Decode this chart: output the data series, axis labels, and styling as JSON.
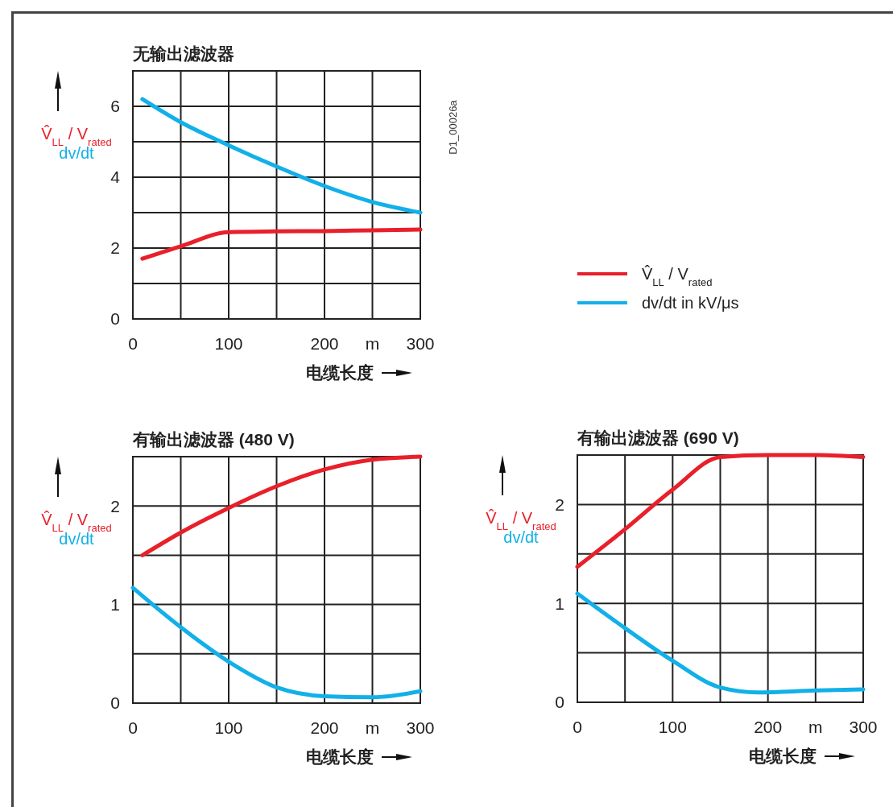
{
  "chart_data": [
    {
      "type": "line",
      "title": "无输出滤波器",
      "xlabel": "电缆长度",
      "ylabel": "V̂$_{LL}$ / V$_{rated}$\ndv/dt",
      "xlim": [
        0,
        300
      ],
      "ylim": [
        0,
        7
      ],
      "xticks": [
        0,
        {
          "value": 50,
          "label": null
        },
        100,
        {
          "value": 150,
          "label": null
        },
        200,
        {
          "value": 250,
          "label": "m"
        },
        300
      ],
      "yticks": [
        0,
        {
          "value": 1,
          "label": null
        },
        2,
        {
          "value": 3,
          "label": null
        },
        4,
        {
          "value": 5,
          "label": null
        },
        6,
        {
          "value": 7,
          "label": null
        }
      ],
      "grid": true,
      "legend": "right",
      "annotations": [
        "D1_00026a"
      ],
      "series": [
        {
          "name": "V̂$_{LL}$ / V$_{rated}$",
          "color": "#e8202a",
          "x": [
            10,
            50,
            100,
            150,
            200,
            250,
            300
          ],
          "values": [
            1.7,
            2.05,
            2.45,
            2.47,
            2.48,
            2.5,
            2.52
          ]
        },
        {
          "name": "dv/dt in kV/μs",
          "color": "#12b0e8",
          "x": [
            10,
            50,
            100,
            150,
            200,
            250,
            300
          ],
          "values": [
            6.2,
            5.55,
            4.9,
            4.3,
            3.75,
            3.3,
            3.0
          ]
        }
      ]
    },
    {
      "type": "line",
      "title": "有输出滤波器 (480 V)",
      "xlabel": "电缆长度",
      "ylabel": "V̂$_{LL}$ / V$_{rated}$\ndv/dt",
      "xlim": [
        0,
        300
      ],
      "ylim": [
        0,
        2.5
      ],
      "xticks": [
        0,
        {
          "value": 50,
          "label": null
        },
        100,
        {
          "value": 150,
          "label": null
        },
        200,
        {
          "value": 250,
          "label": "m"
        },
        300
      ],
      "yticks": [
        0,
        {
          "value": 0.5,
          "label": null
        },
        1,
        {
          "value": 1.5,
          "label": null
        },
        2,
        {
          "value": 2.5,
          "label": null
        }
      ],
      "grid": true,
      "series": [
        {
          "color": "#e8202a",
          "x": [
            10,
            50,
            100,
            150,
            200,
            250,
            300
          ],
          "values": [
            1.5,
            1.73,
            1.98,
            2.2,
            2.37,
            2.47,
            2.5
          ]
        },
        {
          "color": "#12b0e8",
          "x": [
            0,
            50,
            100,
            150,
            200,
            250,
            300
          ],
          "values": [
            1.17,
            0.77,
            0.42,
            0.16,
            0.07,
            0.06,
            0.12
          ]
        }
      ]
    },
    {
      "type": "line",
      "title": "有输出滤波器 (690 V)",
      "xlabel": "电缆长度",
      "ylabel": "V̂$_{LL}$ / V$_{rated}$\ndv/dt",
      "xlim": [
        0,
        300
      ],
      "ylim": [
        0,
        2.5
      ],
      "xticks": [
        0,
        {
          "value": 50,
          "label": null
        },
        100,
        {
          "value": 150,
          "label": null
        },
        200,
        {
          "value": 250,
          "label": "m"
        },
        300
      ],
      "yticks": [
        0,
        {
          "value": 0.5,
          "label": null
        },
        1,
        {
          "value": 1.5,
          "label": null
        },
        2,
        {
          "value": 2.5,
          "label": null
        }
      ],
      "grid": true,
      "series": [
        {
          "color": "#e8202a",
          "x": [
            0,
            50,
            100,
            150,
            200,
            250,
            300
          ],
          "values": [
            1.37,
            1.75,
            2.15,
            2.48,
            2.5,
            2.5,
            2.48
          ]
        },
        {
          "color": "#12b0e8",
          "x": [
            0,
            50,
            100,
            150,
            190,
            250,
            300
          ],
          "values": [
            1.1,
            0.75,
            0.42,
            0.15,
            0.1,
            0.12,
            0.13
          ]
        }
      ]
    }
  ]
}
